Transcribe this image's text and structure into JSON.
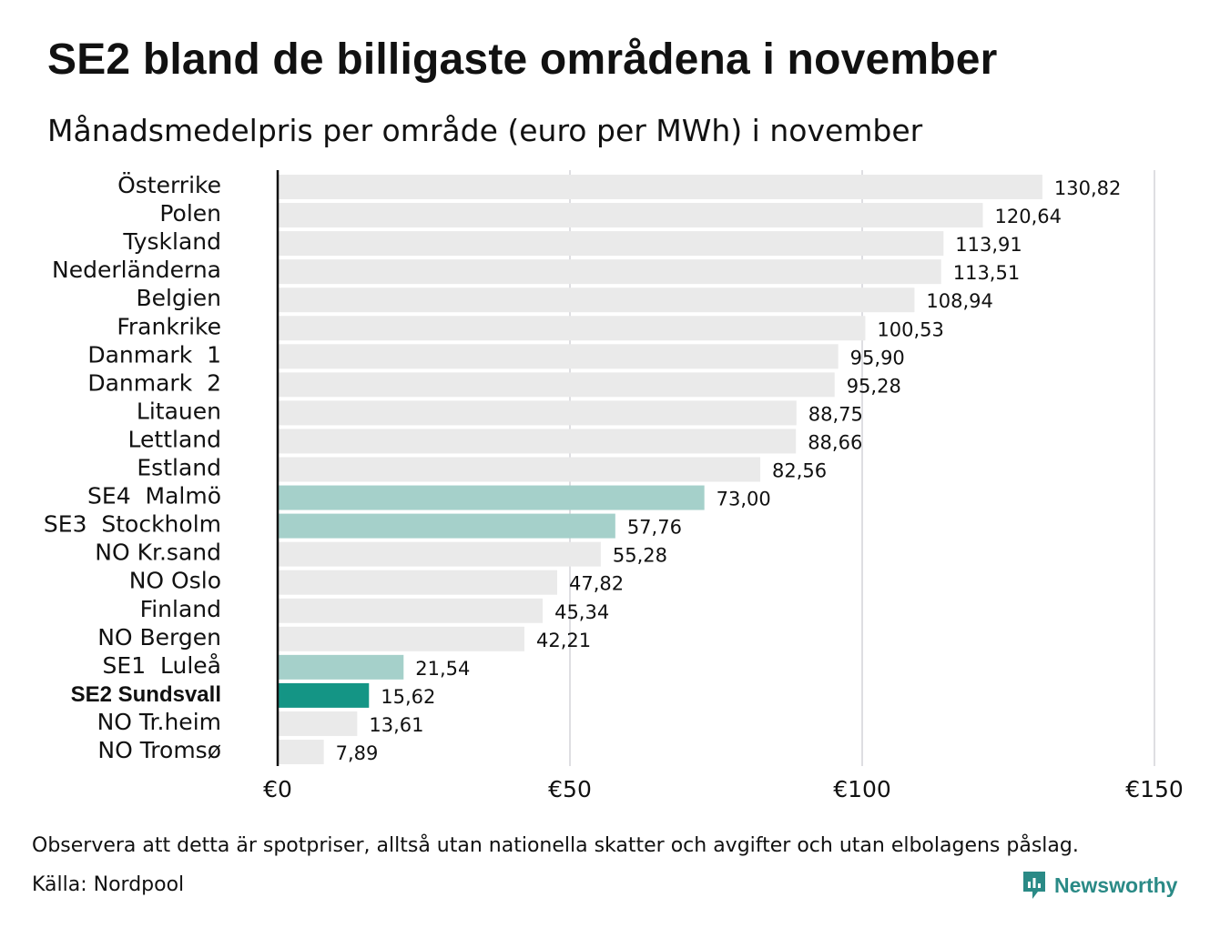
{
  "title": "SE2 bland de billigaste områdena i november",
  "subtitle": "Månadsmedelpris per område (euro per MWh) i november",
  "footnote": "Observera att detta är spotpriser, alltså utan nationella skatter och avgifter och utan elbolagens påslag.",
  "source": "Källa: Nordpool",
  "brand": "Newsworthy",
  "colors": {
    "default_bar": "#eaeaea",
    "swedish_bar": "#a5d0ca",
    "highlight_bar": "#149585",
    "brand": "#2a8a86"
  },
  "chart_data": {
    "type": "bar",
    "orientation": "horizontal",
    "categories": [
      "Österrike",
      "Polen",
      "Tyskland",
      "Nederländerna",
      "Belgien",
      "Frankrike",
      "Danmark  1",
      "Danmark  2",
      "Litauen",
      "Lettland",
      "Estland",
      "SE4  Malmö",
      "SE3  Stockholm",
      "NO Kr.sand",
      "NO Oslo",
      "Finland",
      "NO Bergen",
      "SE1  Luleå",
      "SE2 Sundsvall",
      "NO Tr.heim",
      "NO Tromsø"
    ],
    "values": [
      130.82,
      120.64,
      113.91,
      113.51,
      108.94,
      100.53,
      95.9,
      95.28,
      88.75,
      88.66,
      82.56,
      73.0,
      57.76,
      55.28,
      47.82,
      45.34,
      42.21,
      21.54,
      15.62,
      13.61,
      7.89
    ],
    "value_labels": [
      "130,82",
      "120,64",
      "113,91",
      "113,51",
      "108,94",
      "100,53",
      "95,90",
      "95,28",
      "88,75",
      "88,66",
      "82,56",
      "73,00",
      "57,76",
      "55,28",
      "47,82",
      "45,34",
      "42,21",
      "21,54",
      "15,62",
      "13,61",
      "7,89"
    ],
    "bar_groups": [
      "other",
      "other",
      "other",
      "other",
      "other",
      "other",
      "other",
      "other",
      "other",
      "other",
      "other",
      "sweden",
      "sweden",
      "other",
      "other",
      "other",
      "other",
      "sweden",
      "highlight",
      "other",
      "other"
    ],
    "highlight_category": "SE2 Sundsvall",
    "x_ticks": [
      0,
      50,
      100,
      150
    ],
    "x_tick_labels": [
      "€0",
      "€50",
      "€100",
      "€150"
    ],
    "xlim": [
      0,
      150
    ],
    "grid": true
  }
}
